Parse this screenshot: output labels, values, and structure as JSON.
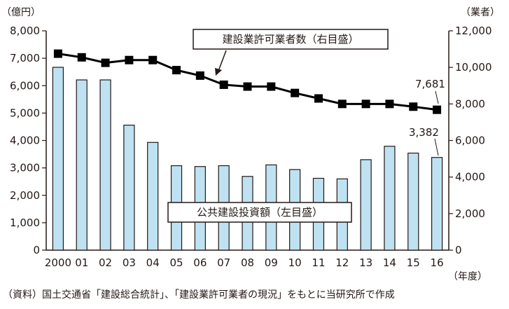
{
  "chart_data": {
    "type": "bar+line",
    "categories": [
      "2000",
      "01",
      "02",
      "03",
      "04",
      "05",
      "06",
      "07",
      "08",
      "09",
      "10",
      "11",
      "12",
      "13",
      "14",
      "15",
      "16"
    ],
    "series": [
      {
        "name": "公共建設投資額（左目盛）",
        "type": "bar",
        "axis": "left",
        "color": "#bfe2f2",
        "values": [
          6670,
          6210,
          6210,
          4560,
          3930,
          3080,
          3050,
          3080,
          2690,
          3110,
          2940,
          2620,
          2600,
          3300,
          3790,
          3540,
          3382
        ]
      },
      {
        "name": "建設業許可業者数（右目盛）",
        "type": "line",
        "axis": "right",
        "color": "#000000",
        "values": [
          10750,
          10550,
          10250,
          10400,
          10400,
          9850,
          9550,
          9050,
          8950,
          8950,
          8600,
          8300,
          8000,
          8000,
          8000,
          7850,
          7681
        ]
      }
    ],
    "y_left": {
      "unit_label": "（億円）",
      "ylim": [
        0,
        8000
      ],
      "ticks": [
        "0",
        "1,000",
        "2,000",
        "3,000",
        "4,000",
        "5,000",
        "6,000",
        "7,000",
        "8,000"
      ]
    },
    "y_right": {
      "unit_label": "（業者）",
      "ylim": [
        0,
        12000
      ],
      "ticks": [
        "0",
        "2,000",
        "4,000",
        "6,000",
        "8,000",
        "10,000",
        "12,000"
      ]
    },
    "x_unit_label": "（年度）",
    "annotations": {
      "bar_last": "3,382",
      "line_last": "7,681"
    },
    "grid": false,
    "source": "（資料）国土交通省「建設総合統計」、「建設業許可業者の現況」をもとに当研究所で作成"
  }
}
